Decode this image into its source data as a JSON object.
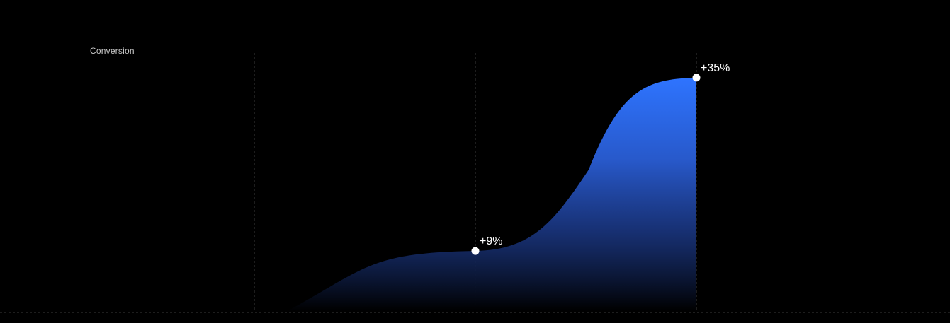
{
  "chart_data": {
    "type": "area",
    "title": "Conversion",
    "xlabel": "",
    "ylabel": "",
    "ylim": [
      0,
      40
    ],
    "grid": "vertical dashed gridlines",
    "legend": "none",
    "series": [
      {
        "points": [
          {
            "x": 0.15,
            "y": 0
          },
          {
            "x": 1,
            "y": 9,
            "label": "+9%"
          },
          {
            "x": 2,
            "y": 35,
            "label": "+35%"
          }
        ]
      }
    ],
    "colors": {
      "background": "#000000",
      "area_top": "#2e74ff",
      "area_bottom": "#000000",
      "marker": "#ffffff",
      "gridline": "#3a3a3a",
      "label": "#ffffff",
      "title": "#c9c9c9"
    }
  }
}
